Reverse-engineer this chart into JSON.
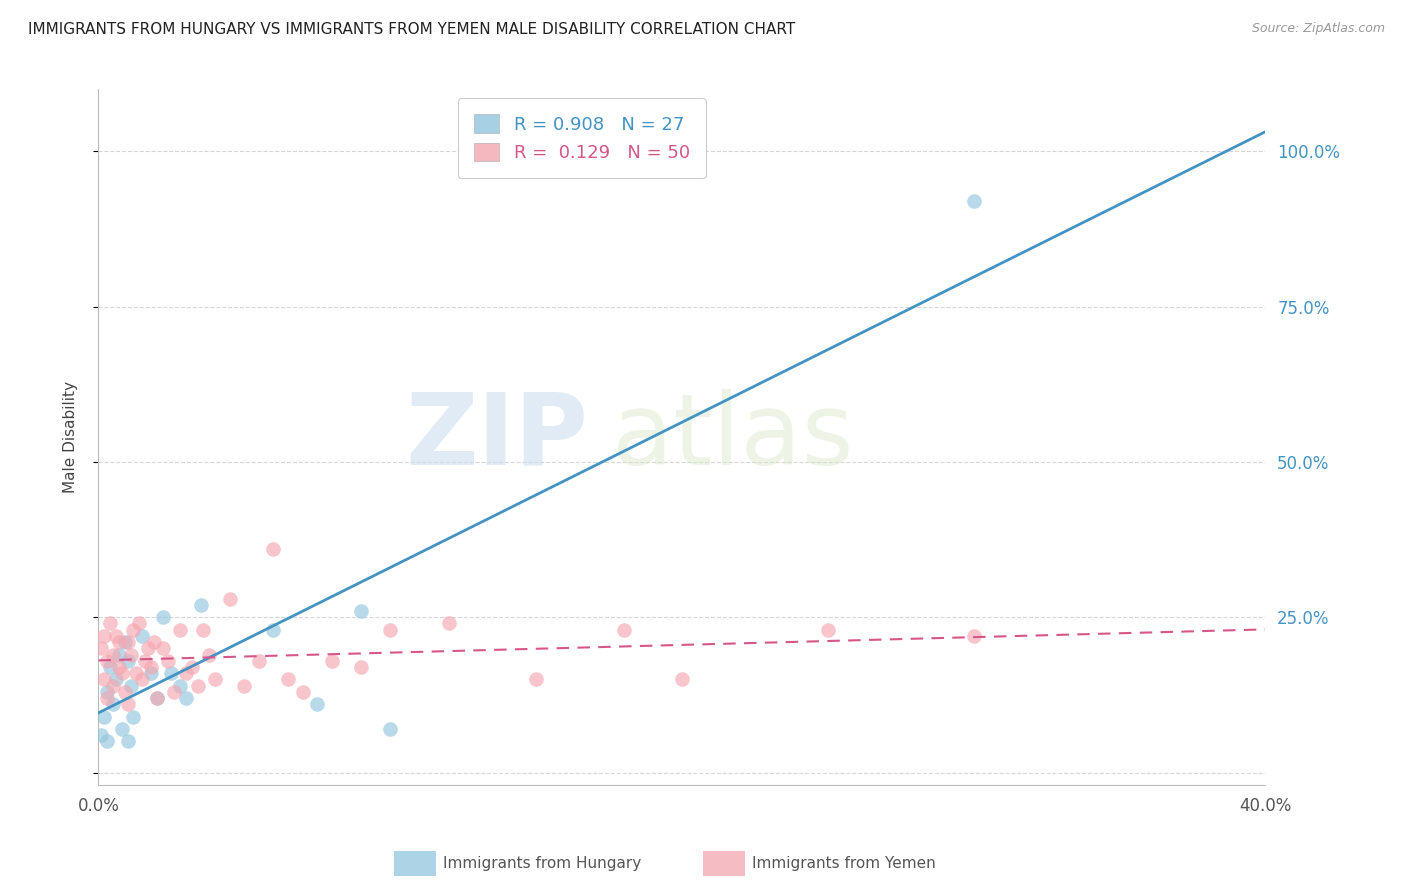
{
  "title": "IMMIGRANTS FROM HUNGARY VS IMMIGRANTS FROM YEMEN MALE DISABILITY CORRELATION CHART",
  "source": "Source: ZipAtlas.com",
  "ylabel": "Male Disability",
  "xlim": [
    0.0,
    0.4
  ],
  "ylim": [
    -0.02,
    1.1
  ],
  "yticks": [
    0.0,
    0.25,
    0.5,
    0.75,
    1.0
  ],
  "ytick_labels": [
    "",
    "25.0%",
    "50.0%",
    "75.0%",
    "100.0%"
  ],
  "hungary_R": 0.908,
  "hungary_N": 27,
  "yemen_R": 0.129,
  "yemen_N": 50,
  "hungary_color": "#92c5de",
  "yemen_color": "#f4a6b0",
  "hungary_trend_color": "#4393c3",
  "yemen_trend_color": "#d6568a",
  "background_color": "#ffffff",
  "grid_color": "#cccccc",
  "watermark_zip": "ZIP",
  "watermark_atlas": "atlas",
  "hungary_x": [
    0.001,
    0.002,
    0.003,
    0.003,
    0.004,
    0.005,
    0.006,
    0.007,
    0.008,
    0.009,
    0.01,
    0.01,
    0.011,
    0.012,
    0.015,
    0.018,
    0.02,
    0.022,
    0.025,
    0.028,
    0.03,
    0.035,
    0.06,
    0.075,
    0.09,
    0.1,
    0.3
  ],
  "hungary_y": [
    0.06,
    0.09,
    0.13,
    0.05,
    0.17,
    0.11,
    0.15,
    0.19,
    0.07,
    0.21,
    0.05,
    0.18,
    0.14,
    0.09,
    0.22,
    0.16,
    0.12,
    0.25,
    0.16,
    0.14,
    0.12,
    0.27,
    0.23,
    0.11,
    0.26,
    0.07,
    0.92
  ],
  "yemen_x": [
    0.001,
    0.002,
    0.002,
    0.003,
    0.003,
    0.004,
    0.005,
    0.005,
    0.006,
    0.007,
    0.007,
    0.008,
    0.009,
    0.01,
    0.01,
    0.011,
    0.012,
    0.013,
    0.014,
    0.015,
    0.016,
    0.017,
    0.018,
    0.019,
    0.02,
    0.022,
    0.024,
    0.026,
    0.028,
    0.03,
    0.032,
    0.034,
    0.036,
    0.038,
    0.04,
    0.045,
    0.05,
    0.055,
    0.06,
    0.065,
    0.07,
    0.08,
    0.09,
    0.1,
    0.12,
    0.15,
    0.18,
    0.2,
    0.25,
    0.3
  ],
  "yemen_y": [
    0.2,
    0.22,
    0.15,
    0.18,
    0.12,
    0.24,
    0.19,
    0.14,
    0.22,
    0.17,
    0.21,
    0.16,
    0.13,
    0.21,
    0.11,
    0.19,
    0.23,
    0.16,
    0.24,
    0.15,
    0.18,
    0.2,
    0.17,
    0.21,
    0.12,
    0.2,
    0.18,
    0.13,
    0.23,
    0.16,
    0.17,
    0.14,
    0.23,
    0.19,
    0.15,
    0.28,
    0.14,
    0.18,
    0.36,
    0.15,
    0.13,
    0.18,
    0.17,
    0.23,
    0.24,
    0.15,
    0.23,
    0.15,
    0.23,
    0.22
  ]
}
